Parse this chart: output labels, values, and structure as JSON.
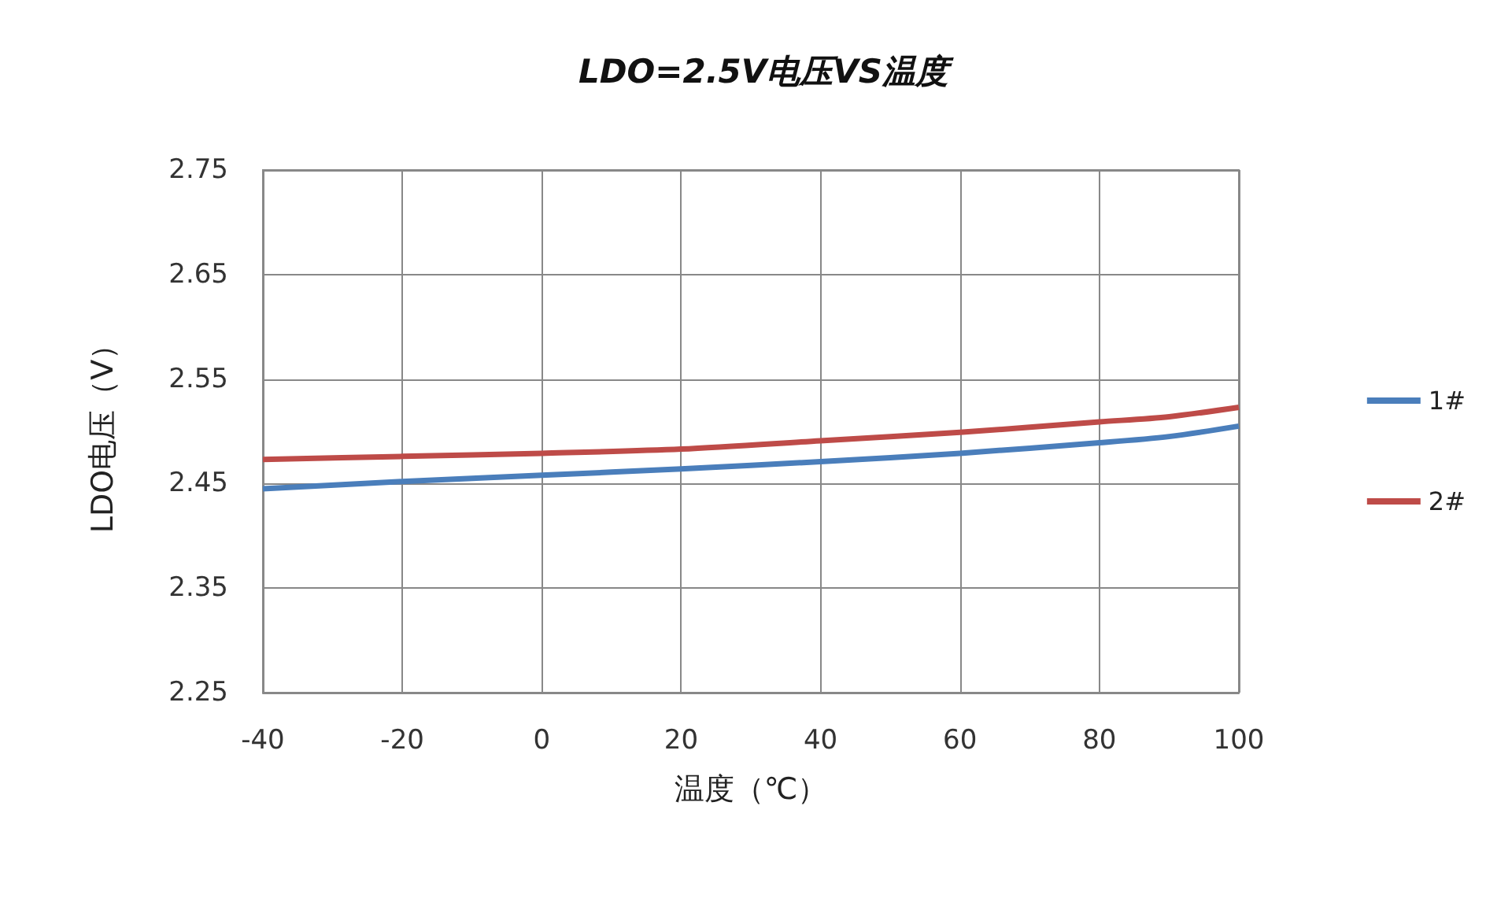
{
  "chart_data": {
    "type": "line",
    "title": "LDO=2.5V电压VS温度",
    "xlabel": "温度（℃）",
    "ylabel": "LDO电压（V）",
    "x": [
      -40,
      -20,
      0,
      20,
      40,
      60,
      80,
      90,
      100
    ],
    "series": [
      {
        "name": "1#",
        "color": "#4a7ebb",
        "values": [
          2.445,
          2.452,
          2.458,
          2.464,
          2.471,
          2.479,
          2.489,
          2.495,
          2.505
        ]
      },
      {
        "name": "2#",
        "color": "#be4b48",
        "values": [
          2.473,
          2.476,
          2.479,
          2.483,
          2.491,
          2.499,
          2.509,
          2.514,
          2.523
        ]
      }
    ],
    "xlim": [
      -40,
      100
    ],
    "xticks": [
      -40,
      -20,
      0,
      20,
      40,
      60,
      80,
      100
    ],
    "ylim": [
      2.25,
      2.75
    ],
    "yticks": [
      2.25,
      2.35,
      2.45,
      2.55,
      2.65,
      2.75
    ],
    "grid": true,
    "legend": "right",
    "marker": "none",
    "line_style": "solid"
  }
}
